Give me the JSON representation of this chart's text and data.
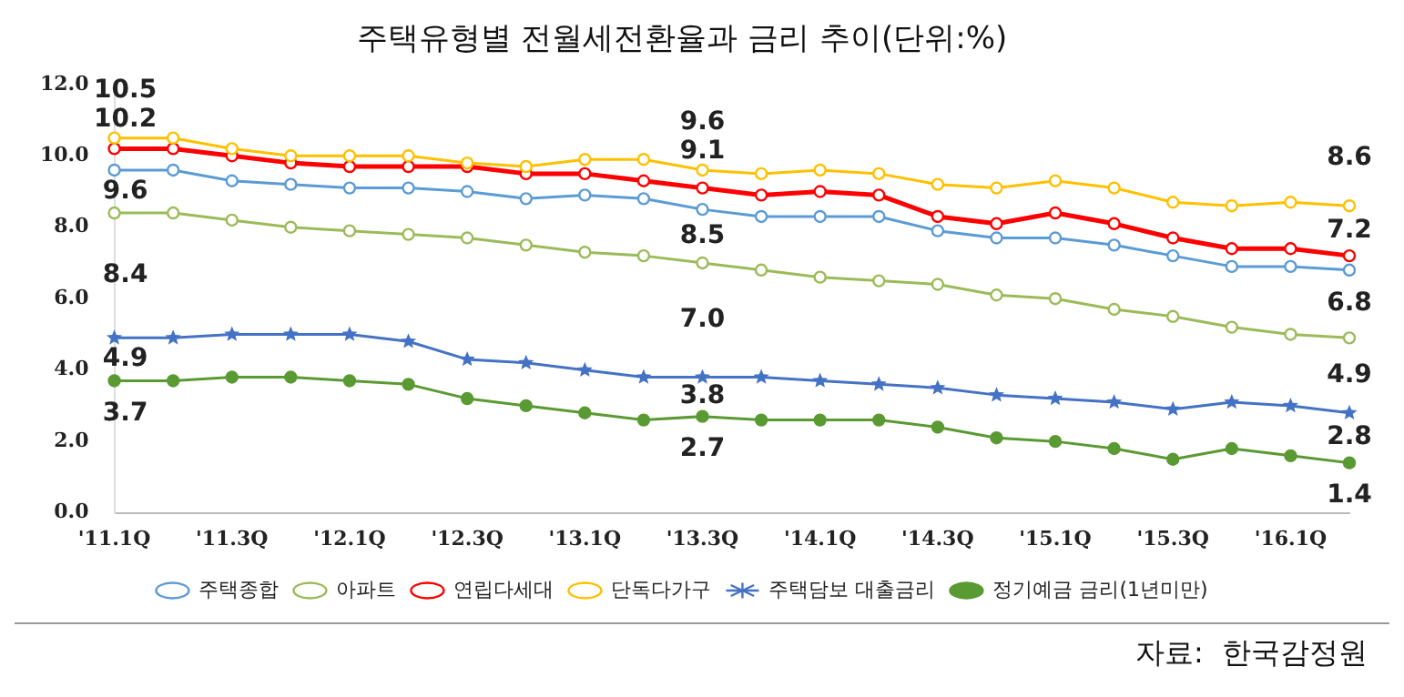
{
  "chart_data": {
    "type": "line",
    "title": "주택유형별 전월세전환율과 금리 추이(단위:%)",
    "categories": [
      "'11.1Q",
      null,
      "'11.3Q",
      null,
      "'12.1Q",
      null,
      "'12.3Q",
      null,
      "'13.1Q",
      null,
      "'13.3Q",
      null,
      "'14.1Q",
      null,
      "'14.3Q",
      null,
      "'15.1Q",
      null,
      "'15.3Q",
      null,
      "'16.1Q",
      null
    ],
    "series": [
      {
        "name": "주택종합",
        "color": "#5b9bd5",
        "marker": "circle",
        "values": [
          9.6,
          9.6,
          9.3,
          9.2,
          9.1,
          9.1,
          9.0,
          8.8,
          8.9,
          8.8,
          8.5,
          8.3,
          8.3,
          8.3,
          7.9,
          7.7,
          7.7,
          7.5,
          7.2,
          6.9,
          6.9,
          6.8
        ],
        "value_labels": [
          "9.6",
          null,
          null,
          null,
          null,
          null,
          null,
          null,
          null,
          null,
          "8.5",
          null,
          null,
          null,
          null,
          null,
          null,
          null,
          null,
          null,
          null,
          "6.8"
        ]
      },
      {
        "name": "아파트",
        "color": "#9bbb59",
        "marker": "circle",
        "values": [
          8.4,
          8.4,
          8.2,
          8.0,
          7.9,
          7.8,
          7.7,
          7.5,
          7.3,
          7.2,
          7.0,
          6.8,
          6.6,
          6.5,
          6.4,
          6.1,
          6.0,
          5.7,
          5.5,
          5.2,
          5.0,
          4.9
        ],
        "value_labels": [
          "8.4",
          null,
          null,
          null,
          null,
          null,
          null,
          null,
          null,
          null,
          "7.0",
          null,
          null,
          null,
          null,
          null,
          null,
          null,
          null,
          null,
          null,
          "4.9"
        ]
      },
      {
        "name": "연립다세대",
        "color": "#ff0000",
        "marker": "circle",
        "values": [
          10.2,
          10.2,
          10.0,
          9.8,
          9.7,
          9.7,
          9.7,
          9.5,
          9.5,
          9.3,
          9.1,
          8.9,
          9.0,
          8.9,
          8.3,
          8.1,
          8.4,
          8.1,
          7.7,
          7.4,
          7.4,
          7.2
        ],
        "value_labels": [
          "10.2",
          null,
          null,
          null,
          null,
          null,
          null,
          null,
          null,
          null,
          "9.1",
          null,
          null,
          null,
          null,
          null,
          null,
          null,
          null,
          null,
          null,
          "7.2"
        ]
      },
      {
        "name": "단독다가구",
        "color": "#ffc000",
        "marker": "circle",
        "values": [
          10.5,
          10.5,
          10.2,
          10.0,
          10.0,
          10.0,
          9.8,
          9.7,
          9.9,
          9.9,
          9.6,
          9.5,
          9.6,
          9.5,
          9.2,
          9.1,
          9.3,
          9.1,
          8.7,
          8.6,
          8.7,
          8.6
        ],
        "value_labels": [
          "10.5",
          null,
          null,
          null,
          null,
          null,
          null,
          null,
          null,
          null,
          "9.6",
          null,
          null,
          null,
          null,
          null,
          null,
          null,
          null,
          null,
          null,
          "8.6"
        ]
      },
      {
        "name": "주택담보 대출금리",
        "color": "#4472c4",
        "marker": "star",
        "values": [
          4.9,
          4.9,
          5.0,
          5.0,
          5.0,
          4.8,
          4.3,
          4.2,
          4.0,
          3.8,
          3.8,
          3.8,
          3.7,
          3.6,
          3.5,
          3.3,
          3.2,
          3.1,
          2.9,
          3.1,
          3.0,
          2.8
        ],
        "value_labels": [
          "4.9",
          null,
          null,
          null,
          null,
          null,
          null,
          null,
          null,
          null,
          "3.8",
          null,
          null,
          null,
          null,
          null,
          null,
          null,
          null,
          null,
          null,
          "2.8"
        ]
      },
      {
        "name": "정기예금 금리(1년미만)",
        "color": "#5a9a32",
        "marker": "circle",
        "values": [
          3.7,
          3.7,
          3.8,
          3.8,
          3.7,
          3.6,
          3.2,
          3.0,
          2.8,
          2.6,
          2.7,
          2.6,
          2.6,
          2.6,
          2.4,
          2.1,
          2.0,
          1.8,
          1.5,
          1.8,
          1.6,
          1.4
        ],
        "value_labels": [
          "3.7",
          null,
          null,
          null,
          null,
          null,
          null,
          null,
          null,
          null,
          "2.7",
          null,
          null,
          null,
          null,
          null,
          null,
          null,
          null,
          null,
          null,
          "1.4"
        ]
      }
    ],
    "ylim": [
      0,
      12
    ],
    "yticks": [
      {
        "value": 0,
        "label": "0.0"
      },
      {
        "value": 2,
        "label": "2.0"
      },
      {
        "value": 4,
        "label": "4.0"
      },
      {
        "value": 6,
        "label": "6.0"
      },
      {
        "value": 8,
        "label": "8.0"
      },
      {
        "value": 10,
        "label": "10.0"
      },
      {
        "value": 12,
        "label": "12.0"
      }
    ],
    "grid": false,
    "legend": "bottom",
    "line_style": "solid",
    "annotations": [
      "자료:  한국감정원"
    ]
  }
}
